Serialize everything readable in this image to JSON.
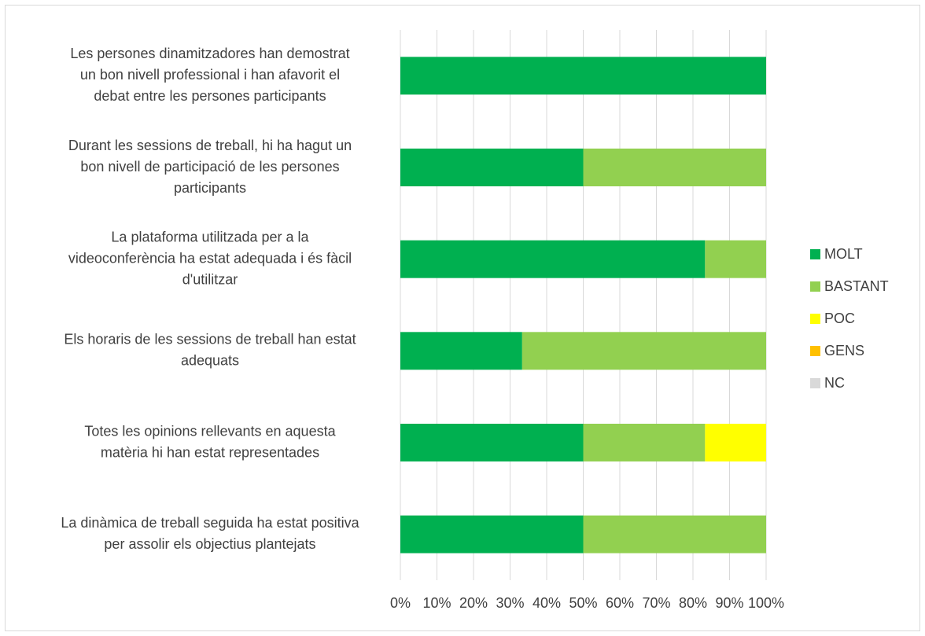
{
  "chart_data": {
    "type": "bar",
    "orientation": "horizontal",
    "stacked": "percent",
    "categories": [
      [
        "Les persones dinamitzadores han demostrat",
        "un bon nivell professional i han afavorit el",
        "debat  entre les persones participants"
      ],
      [
        "Durant les sessions de treball, hi ha hagut un",
        "bon nivell de participació de les persones",
        "participants"
      ],
      [
        "La plataforma utilitzada per a la",
        "videoconferència ha estat adequada i és fàcil",
        "d'utilitzar"
      ],
      [
        "Els horaris de les sessions de treball han estat",
        "adequats"
      ],
      [
        "Totes les opinions rellevants en aquesta",
        "matèria hi han estat representades"
      ],
      [
        "La dinàmica de treball seguida ha estat positiva",
        "per assolir els objectius plantejats"
      ]
    ],
    "series": [
      {
        "name": "MOLT",
        "color": "#00b050",
        "values": [
          100,
          50,
          83.3,
          33.3,
          50,
          50
        ]
      },
      {
        "name": "BASTANT",
        "color": "#92d050",
        "values": [
          0,
          50,
          16.7,
          66.7,
          33.3,
          50
        ]
      },
      {
        "name": "POC",
        "color": "#ffff00",
        "values": [
          0,
          0,
          0,
          0,
          16.7,
          0
        ]
      },
      {
        "name": "GENS",
        "color": "#ffc000",
        "values": [
          0,
          0,
          0,
          0,
          0,
          0
        ]
      },
      {
        "name": "NC",
        "color": "#d9d9d9",
        "values": [
          0,
          0,
          0,
          0,
          0,
          0
        ]
      }
    ],
    "x_ticks": [
      "0%",
      "10%",
      "20%",
      "30%",
      "40%",
      "50%",
      "60%",
      "70%",
      "80%",
      "90%",
      "100%"
    ],
    "xlim": [
      0,
      100
    ],
    "title": "",
    "xlabel": "",
    "ylabel": "",
    "grid": "vertical",
    "legend_position": "right",
    "gridline_color": "#d9d9d9"
  }
}
